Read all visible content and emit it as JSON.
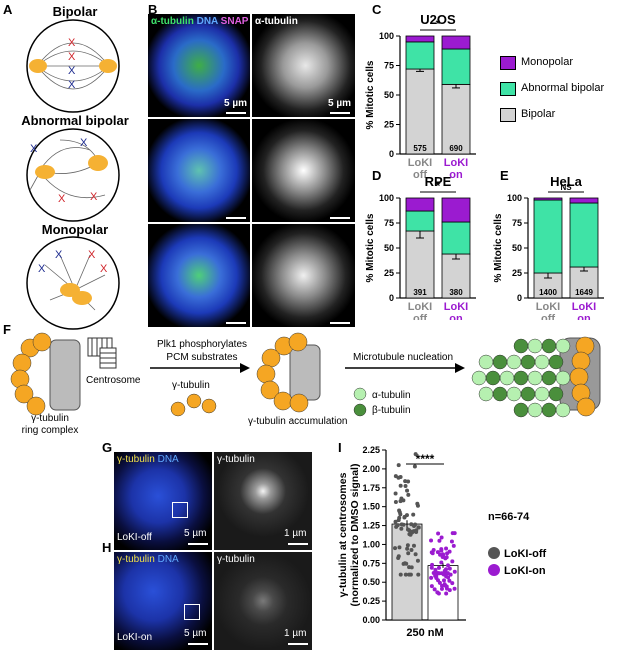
{
  "panels": {
    "A": "A",
    "B": "B",
    "C": "C",
    "D": "D",
    "E": "E",
    "F": "F",
    "G": "G",
    "H": "H",
    "I": "I"
  },
  "panelA": {
    "bipolar": "Bipolar",
    "abnormal": "Abnormal bipolar",
    "monopolar": "Monopolar"
  },
  "panelB": {
    "label_tub": "α-tubulin",
    "label_dna": "DNA",
    "label_snap": "SNAP",
    "label_tub_right": "α-tubulin",
    "scale": "5 µm"
  },
  "legend": {
    "mono": "Monopolar",
    "abn": "Abnormal bipolar",
    "bip": "Bipolar"
  },
  "colors": {
    "bipolar": "#d3d3d3",
    "abnormal": "#3fe3a6",
    "monopolar": "#9b1bd0",
    "off": "#888888",
    "on": "#9b1bd0"
  },
  "chart_data": [
    {
      "type": "bar",
      "title": "U2OS",
      "ylabel": "% Mitotic cells",
      "ylim": [
        0,
        100
      ],
      "categories": [
        "LoKI off",
        "LoKI on"
      ],
      "series": [
        {
          "name": "Bipolar",
          "values": [
            72,
            59
          ],
          "errors": [
            2,
            3
          ]
        },
        {
          "name": "Abnormal bipolar",
          "values": [
            23,
            30
          ]
        },
        {
          "name": "Monopolar",
          "values": [
            5,
            11
          ]
        }
      ],
      "n": [
        "575",
        "690"
      ],
      "significance": "*"
    },
    {
      "type": "bar",
      "title": "RPE",
      "ylabel": "% Mitotic cells",
      "ylim": [
        0,
        100
      ],
      "categories": [
        "LoKI off",
        "LoKI on"
      ],
      "series": [
        {
          "name": "Bipolar",
          "values": [
            67,
            44
          ],
          "errors": [
            7,
            5
          ]
        },
        {
          "name": "Abnormal bipolar",
          "values": [
            20,
            32
          ]
        },
        {
          "name": "Monopolar",
          "values": [
            13,
            24
          ]
        }
      ],
      "n": [
        "391",
        "380"
      ],
      "significance": "*"
    },
    {
      "type": "bar",
      "title": "HeLa",
      "ylabel": "% Mitotic cells",
      "ylim": [
        0,
        100
      ],
      "categories": [
        "LoKI off",
        "LoKI on"
      ],
      "series": [
        {
          "name": "Bipolar",
          "values": [
            25,
            31
          ],
          "errors": [
            5,
            4
          ]
        },
        {
          "name": "Abnormal bipolar",
          "values": [
            73,
            64
          ]
        },
        {
          "name": "Monopolar",
          "values": [
            2,
            5
          ]
        }
      ],
      "n": [
        "1400",
        "1649"
      ],
      "significance": "NS"
    },
    {
      "type": "bar",
      "ylabel": "γ-tubulin at centrosomes (normalized to DMSO signal)",
      "ylim": [
        0,
        2.25
      ],
      "xlabel": "250 nM",
      "categories": [
        "LoKI-off",
        "LoKI-on"
      ],
      "values": [
        1.27,
        0.72
      ],
      "errors": [
        0.05,
        0.03
      ],
      "ticks": [
        "0.00",
        "0.25",
        "0.50",
        "0.75",
        "1.00",
        "1.25",
        "1.50",
        "1.75",
        "2.00",
        "2.25"
      ],
      "significance": "****",
      "n": "n=66-74"
    }
  ],
  "yticks": [
    "0",
    "25",
    "50",
    "75",
    "100"
  ],
  "xcats": {
    "off1": "LoKI",
    "off2": "off",
    "on1": "LoKI",
    "on2": "on"
  },
  "panelF": {
    "ring": "γ-tubulin\nring complex",
    "centrosome": "Centrosome",
    "plk1a": "Plk1 phosphorylates",
    "plk1b": "PCM substrates",
    "gtub": "γ-tubulin",
    "accum": "γ-tubulin accumulation",
    "nucl": "Microtubule nucleation",
    "alpha": "α-tubulin",
    "beta": "β-tubulin"
  },
  "panelGH": {
    "gt": "γ-tubulin",
    "dna": "DNA",
    "gt2": "γ-tubulin",
    "off": "LoKI-off",
    "on": "LoKI-on",
    "s5": "5 µm",
    "s1": "1 µm"
  },
  "panelI": {
    "n": "n=66-74",
    "off": "LoKI-off",
    "on": "LoKI-on",
    "x": "250 nM",
    "sig": "****",
    "ylabel1": "γ-tubulin at centrosomes",
    "ylabel2": "(normalized to DMSO signal)"
  }
}
